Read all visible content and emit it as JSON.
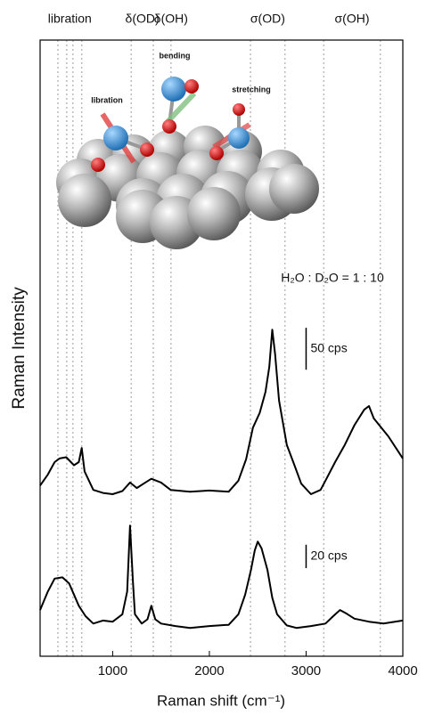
{
  "chart_data": {
    "type": "line",
    "y_label": "Raman Intensity",
    "x_label": "Raman shift (cm⁻¹)",
    "xlim": [
      250,
      4000
    ],
    "xticks": [
      1000,
      2000,
      3000,
      4000
    ],
    "ylim": [
      0,
      100
    ],
    "color": "#000000",
    "series": [
      {
        "x": [
          250,
          330,
          400,
          450,
          520,
          600,
          650,
          680,
          710,
          800,
          900,
          1000,
          1100,
          1180,
          1250,
          1320,
          1400,
          1500,
          1600,
          1800,
          2000,
          2200,
          2300,
          2380,
          2450,
          2520,
          2580,
          2620,
          2650,
          2680,
          2720,
          2800,
          2880,
          2950,
          3050,
          3150,
          3200,
          3300,
          3400,
          3500,
          3600,
          3650,
          3700,
          3850,
          4000
        ],
        "values": [
          27.7,
          29.5,
          31.5,
          32.1,
          32.3,
          31.0,
          31.5,
          33.8,
          30.0,
          27.0,
          26.5,
          26.3,
          26.8,
          28.2,
          27.3,
          28.0,
          28.8,
          28.2,
          27.0,
          26.7,
          26.9,
          26.7,
          28.5,
          32.0,
          37.1,
          39.5,
          42.9,
          47.0,
          53.0,
          49.0,
          41.5,
          34.3,
          31.0,
          28.0,
          26.3,
          27.0,
          28.5,
          31.5,
          34.3,
          37.5,
          40.0,
          40.6,
          38.6,
          35.7,
          32.1
        ]
      },
      {
        "x": [
          250,
          330,
          400,
          480,
          550,
          600,
          650,
          720,
          800,
          900,
          1000,
          1100,
          1150,
          1180,
          1210,
          1230,
          1300,
          1360,
          1400,
          1440,
          1500,
          1650,
          1800,
          2000,
          2200,
          2300,
          2370,
          2430,
          2470,
          2500,
          2540,
          2600,
          2650,
          2700,
          2800,
          2900,
          3050,
          3200,
          3280,
          3350,
          3420,
          3500,
          3650,
          3800,
          4000
        ],
        "values": [
          7.5,
          10.5,
          12.6,
          12.8,
          11.8,
          10.0,
          8.2,
          6.5,
          5.3,
          5.8,
          5.6,
          6.8,
          10.5,
          21.2,
          12.0,
          6.8,
          5.3,
          6.0,
          8.2,
          6.0,
          5.3,
          4.9,
          4.6,
          4.9,
          5.1,
          6.8,
          10.0,
          14.0,
          17.2,
          18.6,
          17.5,
          14.0,
          9.5,
          6.8,
          5.0,
          4.6,
          4.9,
          5.3,
          6.5,
          7.5,
          6.9,
          6.1,
          5.6,
          5.3,
          5.8
        ]
      }
    ],
    "scale_bars": [
      {
        "label": "50 cps",
        "length": 6.8,
        "base": 46.5
      },
      {
        "label": "20 cps",
        "length": 3.8,
        "base": 14.3
      }
    ],
    "scale_bar_x": 3000,
    "annotation": "H₂O : D₂O = 1 : 10",
    "bands": [
      {
        "label": "libration",
        "lines": [
          434,
          525,
          589,
          680
        ]
      },
      {
        "label": "δ(OD)",
        "lines": [
          1192,
          1420
        ]
      },
      {
        "label": "δ(OH)",
        "lines": [
          1603
        ]
      },
      {
        "label": "σ(OD)",
        "lines": [
          2425,
          2781
        ]
      },
      {
        "label": "σ(OH)",
        "lines": [
          3183,
          3767
        ]
      }
    ]
  },
  "illustration": {
    "labels": [
      "libration",
      "bending",
      "stretching"
    ]
  }
}
